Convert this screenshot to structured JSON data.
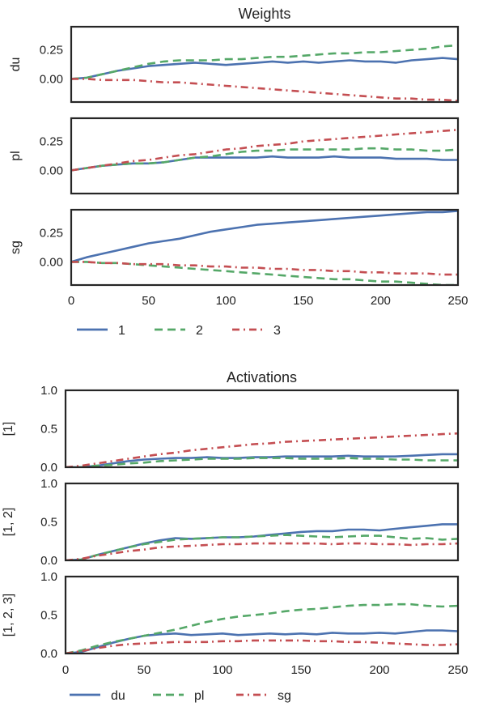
{
  "chart_data": [
    {
      "type": "line",
      "title": "Weights",
      "xlabel": "",
      "xlim": [
        0,
        250
      ],
      "xticks": [
        0,
        50,
        100,
        150,
        200,
        250
      ],
      "grid": false,
      "legend": {
        "placement": "bottom",
        "entries": [
          {
            "label": "1",
            "color": "#4c72b0",
            "style": "solid"
          },
          {
            "label": "2",
            "color": "#55a868",
            "style": "dashed"
          },
          {
            "label": "3",
            "color": "#c44e52",
            "style": "dashdot"
          }
        ]
      },
      "x": [
        0,
        10,
        20,
        30,
        40,
        50,
        60,
        70,
        80,
        90,
        100,
        110,
        120,
        130,
        140,
        150,
        160,
        170,
        180,
        190,
        200,
        210,
        220,
        230,
        240,
        250
      ],
      "subplots": [
        {
          "ylabel": "du",
          "ylim": [
            -0.2,
            0.45
          ],
          "yticks": [
            "0.25",
            "0.00"
          ],
          "ytick_values": [
            0.25,
            0.0
          ],
          "series": [
            {
              "legend_index": 0,
              "values": [
                0.0,
                0.01,
                0.04,
                0.07,
                0.09,
                0.11,
                0.12,
                0.13,
                0.14,
                0.13,
                0.12,
                0.13,
                0.14,
                0.15,
                0.14,
                0.15,
                0.14,
                0.15,
                0.16,
                0.15,
                0.15,
                0.14,
                0.16,
                0.17,
                0.18,
                0.17
              ]
            },
            {
              "legend_index": 1,
              "values": [
                0.0,
                0.01,
                0.04,
                0.07,
                0.1,
                0.13,
                0.15,
                0.16,
                0.16,
                0.16,
                0.17,
                0.17,
                0.18,
                0.19,
                0.19,
                0.2,
                0.21,
                0.22,
                0.22,
                0.23,
                0.23,
                0.24,
                0.25,
                0.26,
                0.28,
                0.29
              ]
            },
            {
              "legend_index": 2,
              "values": [
                0.0,
                0.0,
                -0.01,
                -0.01,
                -0.01,
                -0.02,
                -0.03,
                -0.03,
                -0.04,
                -0.05,
                -0.06,
                -0.07,
                -0.08,
                -0.09,
                -0.1,
                -0.11,
                -0.12,
                -0.13,
                -0.14,
                -0.15,
                -0.16,
                -0.17,
                -0.17,
                -0.18,
                -0.18,
                -0.19
              ]
            }
          ]
        },
        {
          "ylabel": "pl",
          "ylim": [
            -0.2,
            0.45
          ],
          "yticks": [
            "0.25",
            "0.00"
          ],
          "ytick_values": [
            0.25,
            0.0
          ],
          "series": [
            {
              "legend_index": 0,
              "values": [
                0.0,
                0.02,
                0.04,
                0.05,
                0.06,
                0.06,
                0.07,
                0.09,
                0.11,
                0.11,
                0.11,
                0.11,
                0.11,
                0.12,
                0.11,
                0.11,
                0.11,
                0.12,
                0.11,
                0.11,
                0.11,
                0.1,
                0.1,
                0.1,
                0.09,
                0.09
              ]
            },
            {
              "legend_index": 1,
              "values": [
                0.0,
                0.02,
                0.04,
                0.05,
                0.06,
                0.06,
                0.07,
                0.09,
                0.11,
                0.12,
                0.14,
                0.16,
                0.17,
                0.17,
                0.18,
                0.18,
                0.18,
                0.18,
                0.18,
                0.19,
                0.19,
                0.18,
                0.18,
                0.17,
                0.17,
                0.18
              ]
            },
            {
              "legend_index": 2,
              "values": [
                0.0,
                0.02,
                0.04,
                0.06,
                0.08,
                0.09,
                0.11,
                0.13,
                0.14,
                0.16,
                0.18,
                0.19,
                0.21,
                0.22,
                0.23,
                0.25,
                0.26,
                0.27,
                0.28,
                0.29,
                0.3,
                0.31,
                0.32,
                0.33,
                0.34,
                0.35
              ]
            }
          ]
        },
        {
          "ylabel": "sg",
          "ylim": [
            -0.2,
            0.45
          ],
          "yticks": [
            "0.25",
            "0.00"
          ],
          "ytick_values": [
            0.25,
            0.0
          ],
          "series": [
            {
              "legend_index": 0,
              "values": [
                0.0,
                0.04,
                0.07,
                0.1,
                0.13,
                0.16,
                0.18,
                0.2,
                0.23,
                0.26,
                0.28,
                0.3,
                0.32,
                0.33,
                0.34,
                0.35,
                0.36,
                0.37,
                0.38,
                0.39,
                0.4,
                0.41,
                0.42,
                0.43,
                0.43,
                0.44
              ]
            },
            {
              "legend_index": 1,
              "values": [
                0.0,
                0.0,
                -0.01,
                -0.01,
                -0.02,
                -0.03,
                -0.04,
                -0.05,
                -0.06,
                -0.07,
                -0.08,
                -0.09,
                -0.1,
                -0.11,
                -0.12,
                -0.13,
                -0.14,
                -0.15,
                -0.15,
                -0.16,
                -0.17,
                -0.17,
                -0.18,
                -0.19,
                -0.2,
                -0.2
              ]
            },
            {
              "legend_index": 2,
              "values": [
                0.0,
                0.0,
                -0.01,
                -0.01,
                -0.02,
                -0.02,
                -0.02,
                -0.03,
                -0.03,
                -0.04,
                -0.04,
                -0.05,
                -0.05,
                -0.06,
                -0.06,
                -0.07,
                -0.07,
                -0.08,
                -0.08,
                -0.09,
                -0.09,
                -0.1,
                -0.1,
                -0.1,
                -0.11,
                -0.11
              ]
            }
          ]
        }
      ]
    },
    {
      "type": "line",
      "title": "Activations",
      "xlabel": "",
      "xlim": [
        0,
        250
      ],
      "xticks": [
        0,
        50,
        100,
        150,
        200,
        250
      ],
      "grid": false,
      "legend": {
        "placement": "bottom",
        "entries": [
          {
            "label": "du",
            "color": "#4c72b0",
            "style": "solid"
          },
          {
            "label": "pl",
            "color": "#55a868",
            "style": "dashed"
          },
          {
            "label": "sg",
            "color": "#c44e52",
            "style": "dashdot"
          }
        ]
      },
      "x": [
        0,
        10,
        20,
        30,
        40,
        50,
        60,
        70,
        80,
        90,
        100,
        110,
        120,
        130,
        140,
        150,
        160,
        170,
        180,
        190,
        200,
        210,
        220,
        230,
        240,
        250
      ],
      "subplots": [
        {
          "ylabel": "[1]",
          "ylim": [
            0,
            1
          ],
          "yticks": [
            "1.0",
            "0.5",
            "0.0"
          ],
          "ytick_values": [
            1.0,
            0.5,
            0.0
          ],
          "series": [
            {
              "legend_index": 0,
              "values": [
                0.0,
                0.0,
                0.02,
                0.05,
                0.08,
                0.1,
                0.11,
                0.12,
                0.12,
                0.13,
                0.12,
                0.12,
                0.13,
                0.13,
                0.14,
                0.14,
                0.14,
                0.14,
                0.15,
                0.14,
                0.14,
                0.14,
                0.15,
                0.16,
                0.17,
                0.17
              ]
            },
            {
              "legend_index": 1,
              "values": [
                0.0,
                0.0,
                0.02,
                0.03,
                0.05,
                0.06,
                0.08,
                0.09,
                0.1,
                0.11,
                0.11,
                0.11,
                0.12,
                0.12,
                0.12,
                0.11,
                0.11,
                0.11,
                0.12,
                0.11,
                0.11,
                0.1,
                0.1,
                0.09,
                0.09,
                0.09
              ]
            },
            {
              "legend_index": 2,
              "values": [
                0.0,
                0.02,
                0.05,
                0.08,
                0.11,
                0.14,
                0.17,
                0.19,
                0.22,
                0.24,
                0.26,
                0.28,
                0.3,
                0.31,
                0.33,
                0.34,
                0.35,
                0.36,
                0.37,
                0.38,
                0.39,
                0.4,
                0.41,
                0.42,
                0.43,
                0.44
              ]
            }
          ]
        },
        {
          "ylabel": "[1, 2]",
          "ylim": [
            0,
            1
          ],
          "yticks": [
            "1.0",
            "0.5",
            "0.0"
          ],
          "ytick_values": [
            1.0,
            0.5,
            0.0
          ],
          "series": [
            {
              "legend_index": 0,
              "values": [
                0.0,
                0.01,
                0.07,
                0.12,
                0.17,
                0.22,
                0.26,
                0.29,
                0.28,
                0.29,
                0.3,
                0.3,
                0.31,
                0.33,
                0.35,
                0.37,
                0.38,
                0.38,
                0.4,
                0.4,
                0.39,
                0.41,
                0.43,
                0.45,
                0.47,
                0.47
              ]
            },
            {
              "legend_index": 1,
              "values": [
                0.0,
                0.01,
                0.07,
                0.12,
                0.17,
                0.21,
                0.24,
                0.27,
                0.28,
                0.29,
                0.3,
                0.3,
                0.31,
                0.32,
                0.33,
                0.32,
                0.31,
                0.3,
                0.31,
                0.32,
                0.32,
                0.3,
                0.28,
                0.29,
                0.27,
                0.28
              ]
            },
            {
              "legend_index": 2,
              "values": [
                0.0,
                0.02,
                0.06,
                0.09,
                0.12,
                0.14,
                0.17,
                0.18,
                0.19,
                0.2,
                0.21,
                0.21,
                0.22,
                0.22,
                0.22,
                0.22,
                0.22,
                0.21,
                0.22,
                0.22,
                0.21,
                0.21,
                0.2,
                0.21,
                0.21,
                0.22
              ]
            }
          ]
        },
        {
          "ylabel": "[1, 2, 3]",
          "ylim": [
            0,
            1
          ],
          "yticks": [
            "1.0",
            "0.5",
            "0.0"
          ],
          "ytick_values": [
            1.0,
            0.5,
            0.0
          ],
          "series": [
            {
              "legend_index": 0,
              "values": [
                0.0,
                0.02,
                0.08,
                0.14,
                0.19,
                0.23,
                0.25,
                0.26,
                0.24,
                0.25,
                0.26,
                0.24,
                0.25,
                0.26,
                0.25,
                0.26,
                0.25,
                0.27,
                0.26,
                0.26,
                0.27,
                0.26,
                0.28,
                0.3,
                0.3,
                0.29
              ]
            },
            {
              "legend_index": 1,
              "values": [
                0.0,
                0.04,
                0.1,
                0.15,
                0.19,
                0.23,
                0.27,
                0.31,
                0.36,
                0.41,
                0.45,
                0.48,
                0.5,
                0.52,
                0.55,
                0.57,
                0.58,
                0.6,
                0.62,
                0.63,
                0.63,
                0.64,
                0.64,
                0.62,
                0.61,
                0.62
              ]
            },
            {
              "legend_index": 2,
              "values": [
                0.0,
                0.03,
                0.07,
                0.1,
                0.12,
                0.13,
                0.14,
                0.15,
                0.15,
                0.15,
                0.16,
                0.16,
                0.17,
                0.17,
                0.17,
                0.17,
                0.16,
                0.16,
                0.15,
                0.15,
                0.14,
                0.13,
                0.12,
                0.11,
                0.11,
                0.12
              ]
            }
          ]
        }
      ]
    }
  ]
}
